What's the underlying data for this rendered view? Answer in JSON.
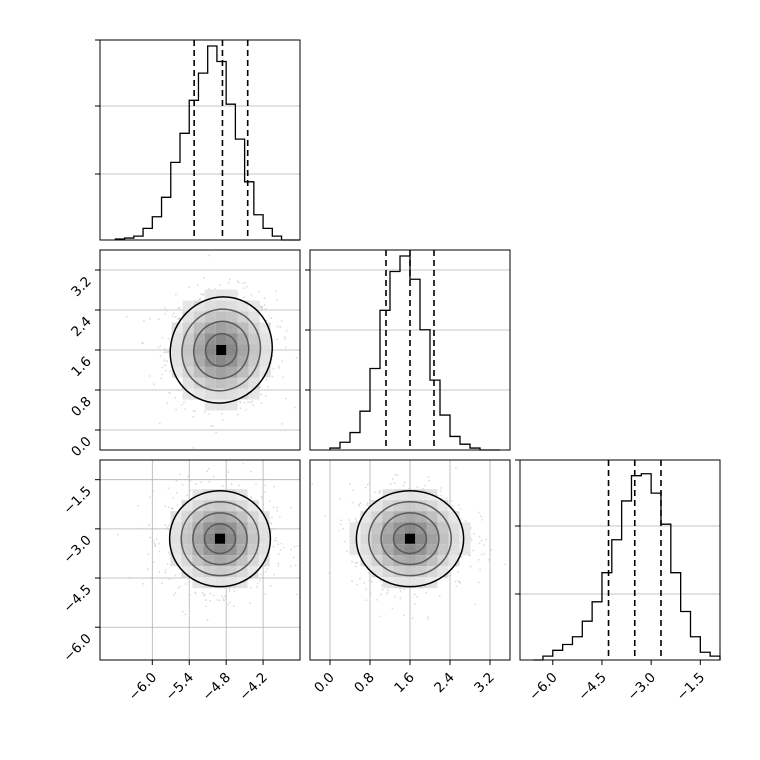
{
  "chart_data": [
    {
      "type": "histogram",
      "title": "",
      "panel": "row1-col1",
      "xlim": [
        -6.85,
        -3.6
      ],
      "ylim": [
        0,
        1.0
      ],
      "bins_x": [
        -6.6,
        -6.45,
        -6.3,
        -6.15,
        -6.0,
        -5.85,
        -5.7,
        -5.55,
        -5.4,
        -5.25,
        -5.1,
        -4.95,
        -4.8,
        -4.65,
        -4.5,
        -4.35,
        -4.2,
        -4.05,
        -3.9,
        -3.75
      ],
      "values": [
        0.005,
        0.01,
        0.02,
        0.06,
        0.12,
        0.22,
        0.4,
        0.55,
        0.72,
        0.86,
        1.0,
        0.92,
        0.7,
        0.52,
        0.3,
        0.13,
        0.06,
        0.02,
        0.0,
        0.0
      ],
      "quantile_lines": [
        -5.32,
        -4.86,
        -4.45
      ],
      "y_gridlines": [
        0.33,
        0.67,
        1.0
      ],
      "grid": true
    },
    {
      "type": "histogram",
      "panel": "row2-col2",
      "xlim": [
        -0.4,
        3.6
      ],
      "ylim": [
        0,
        1.0
      ],
      "bins_x": [
        0.0,
        0.2,
        0.4,
        0.6,
        0.8,
        1.0,
        1.2,
        1.4,
        1.6,
        1.8,
        2.0,
        2.2,
        2.4,
        2.6,
        2.8,
        3.0,
        3.2
      ],
      "values": [
        0.01,
        0.04,
        0.09,
        0.2,
        0.42,
        0.72,
        0.92,
        1.0,
        0.88,
        0.62,
        0.36,
        0.18,
        0.07,
        0.03,
        0.01,
        0.0,
        0.0
      ],
      "quantile_lines": [
        1.12,
        1.6,
        2.08
      ],
      "y_gridlines": [
        0.3,
        0.6,
        0.9
      ],
      "grid": true
    },
    {
      "type": "histogram",
      "panel": "row3-col3",
      "xlim": [
        -7.0,
        -0.9
      ],
      "ylim": [
        0,
        1.0
      ],
      "bins_x": [
        -6.6,
        -6.3,
        -6.0,
        -5.7,
        -5.4,
        -5.1,
        -4.8,
        -4.5,
        -4.2,
        -3.9,
        -3.6,
        -3.3,
        -3.0,
        -2.7,
        -2.4,
        -2.1,
        -1.8,
        -1.5,
        -1.2
      ],
      "values": [
        0.0,
        0.02,
        0.05,
        0.08,
        0.12,
        0.2,
        0.3,
        0.45,
        0.62,
        0.82,
        0.95,
        0.96,
        0.86,
        0.7,
        0.45,
        0.25,
        0.12,
        0.04,
        0.02
      ],
      "quantile_lines": [
        -4.3,
        -3.5,
        -2.7
      ],
      "y_gridlines": [
        0.33,
        0.67,
        1.0
      ],
      "grid": true
    },
    {
      "type": "scatter",
      "panel": "row2-col1",
      "description_axes": "x vs y (2D density)",
      "xlim": [
        -6.85,
        -3.6
      ],
      "ylim": [
        -0.4,
        3.6
      ],
      "center": [
        -4.88,
        1.6
      ],
      "spread": [
        0.42,
        0.55
      ],
      "yticks": [
        "0.0",
        "0.8",
        "1.6",
        "2.4",
        "3.2"
      ],
      "ytick_values": [
        0.0,
        0.8,
        1.6,
        2.4,
        3.2
      ],
      "grid": true
    },
    {
      "type": "scatter",
      "panel": "row3-col1",
      "xlim": [
        -6.85,
        -3.6
      ],
      "ylim": [
        -7.0,
        -0.9
      ],
      "center": [
        -4.9,
        -3.3
      ],
      "spread": [
        0.42,
        0.75
      ],
      "xticks": [
        "−6.0",
        "−5.4",
        "−4.8",
        "−4.2"
      ],
      "xtick_values": [
        -6.0,
        -5.4,
        -4.8,
        -4.2
      ],
      "yticks": [
        "−1.5",
        "−3.0",
        "−4.5",
        "−6.0"
      ],
      "ytick_values": [
        -1.5,
        -3.0,
        -4.5,
        -6.0
      ],
      "grid": true
    },
    {
      "type": "scatter",
      "panel": "row3-col2",
      "xlim": [
        -0.4,
        3.6
      ],
      "ylim": [
        -7.0,
        -0.9
      ],
      "center": [
        1.6,
        -3.3
      ],
      "spread": [
        0.55,
        0.75
      ],
      "xticks": [
        "0.0",
        "0.8",
        "1.6",
        "2.4",
        "3.2"
      ],
      "xtick_values": [
        0.0,
        0.8,
        1.6,
        2.4,
        3.2
      ],
      "grid": true
    },
    {
      "type": "histogram-axis",
      "panel": "row3-col3-xticks",
      "xticks": [
        "−6.0",
        "−4.5",
        "−3.0",
        "−1.5"
      ],
      "xtick_values": [
        -6.0,
        -4.5,
        -3.0,
        -1.5
      ]
    }
  ],
  "colors": {
    "axes": "#000000",
    "grid": "#b0b0b0",
    "points": "#bdbdbd",
    "density_dark": "#000000",
    "background": "#ffffff"
  }
}
